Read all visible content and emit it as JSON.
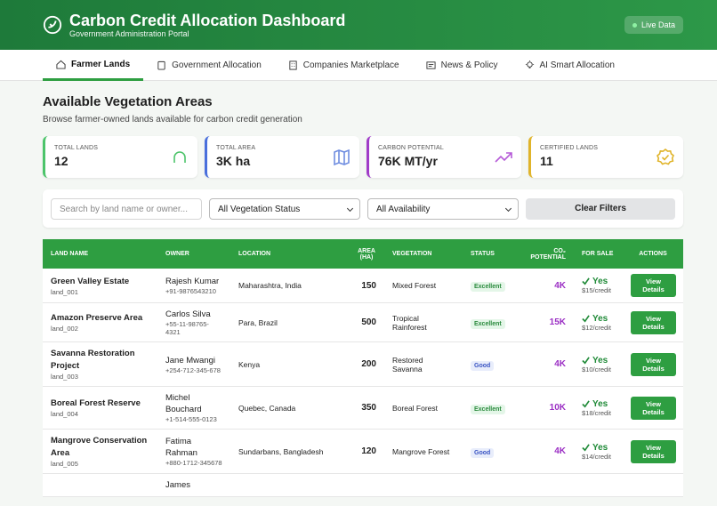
{
  "header": {
    "title": "Carbon Credit Allocation Dashboard",
    "subtitle": "Government Administration Portal",
    "badge": "Live Data"
  },
  "tabs": [
    "Farmer Lands",
    "Government Allocation",
    "Companies Marketplace",
    "News & Policy",
    "AI Smart Allocation"
  ],
  "section": {
    "title": "Available Vegetation Areas",
    "description": "Browse farmer-owned lands available for carbon credit generation"
  },
  "stats": [
    {
      "label": "TOTAL LANDS",
      "value": "12"
    },
    {
      "label": "TOTAL AREA",
      "value": "3K ha"
    },
    {
      "label": "CARBON POTENTIAL",
      "value": "76K MT/yr"
    },
    {
      "label": "CERTIFIED LANDS",
      "value": "11"
    }
  ],
  "filters": {
    "search_placeholder": "Search by land name or owner...",
    "vegetation_select": "All Vegetation Status",
    "availability_select": "All Availability",
    "clear_button": "Clear Filters"
  },
  "table": {
    "columns": [
      "LAND NAME",
      "OWNER",
      "LOCATION",
      "AREA (HA)",
      "VEGETATION",
      "STATUS",
      "CO₂ POTENTIAL",
      "FOR SALE",
      "ACTIONS"
    ],
    "rows": [
      {
        "name": "Green Valley Estate",
        "id": "land_001",
        "owner": "Rajesh Kumar",
        "phone": "+91-9876543210",
        "location": "Maharashtra, India",
        "area": 150,
        "vegetation": "Mixed Forest",
        "status": "Excellent",
        "co2": "4K",
        "for_sale": "Yes",
        "price": "$15/credit",
        "action": "View Details"
      },
      {
        "name": "Amazon Preserve Area",
        "id": "land_002",
        "owner": "Carlos Silva",
        "phone": "+55-11-98765-4321",
        "location": "Para, Brazil",
        "area": 500,
        "vegetation": "Tropical Rainforest",
        "status": "Excellent",
        "co2": "15K",
        "for_sale": "Yes",
        "price": "$12/credit",
        "action": "View Details"
      },
      {
        "name": "Savanna Restoration Project",
        "id": "land_003",
        "owner": "Jane Mwangi",
        "phone": "+254-712-345-678",
        "location": "Kenya",
        "area": 200,
        "vegetation": "Restored Savanna",
        "status": "Good",
        "co2": "4K",
        "for_sale": "Yes",
        "price": "$10/credit",
        "action": "View Details"
      },
      {
        "name": "Boreal Forest Reserve",
        "id": "land_004",
        "owner": "Michel Bouchard",
        "phone": "+1-514-555-0123",
        "location": "Quebec, Canada",
        "area": 350,
        "vegetation": "Boreal Forest",
        "status": "Excellent",
        "co2": "10K",
        "for_sale": "Yes",
        "price": "$18/credit",
        "action": "View Details"
      },
      {
        "name": "Mangrove Conservation Area",
        "id": "land_005",
        "owner": "Fatima Rahman",
        "phone": "+880-1712-345678",
        "location": "Sundarbans, Bangladesh",
        "area": 120,
        "vegetation": "Mangrove Forest",
        "status": "Good",
        "co2": "4K",
        "for_sale": "Yes",
        "price": "$14/credit",
        "action": "View Details"
      },
      {
        "owner": "James"
      }
    ]
  }
}
